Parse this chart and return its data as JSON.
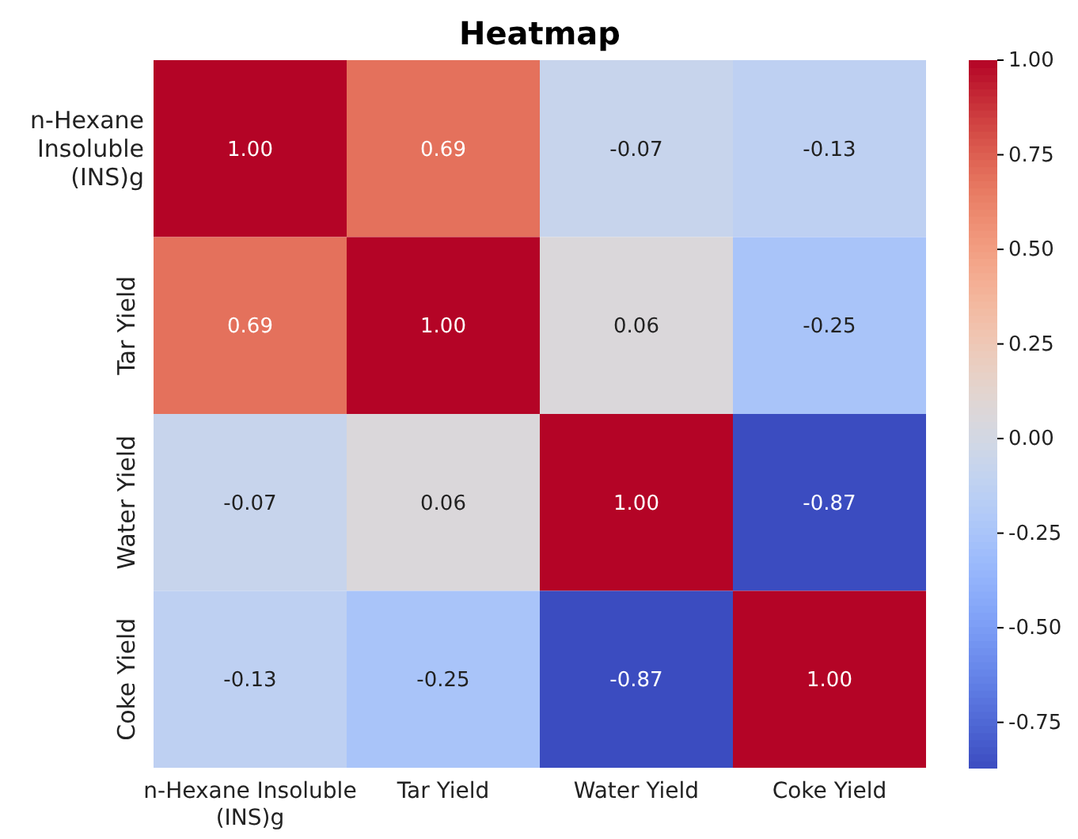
{
  "chart_data": {
    "type": "heatmap",
    "title": "Heatmap",
    "categories": [
      "n-Hexane Insoluble (INS)g",
      "Tar Yield",
      "Water Yield",
      "Coke Yield"
    ],
    "y_categories": [
      "n-Hexane Insoluble (INS)g",
      "Tar Yield",
      "Water Yield",
      "Coke Yield"
    ],
    "cells": [
      [
        1.0,
        0.69,
        -0.07,
        -0.13
      ],
      [
        0.69,
        1.0,
        0.06,
        -0.25
      ],
      [
        -0.07,
        0.06,
        1.0,
        -0.87
      ],
      [
        -0.13,
        -0.25,
        -0.87,
        1.0
      ]
    ],
    "cell_labels": [
      [
        "1.00",
        "0.69",
        "-0.07",
        "-0.13"
      ],
      [
        "0.69",
        "1.00",
        "0.06",
        "-0.25"
      ],
      [
        "-0.07",
        "0.06",
        "1.00",
        "-0.87"
      ],
      [
        "-0.13",
        "-0.25",
        "-0.87",
        "1.00"
      ]
    ],
    "clim": [
      -0.87,
      1.0
    ],
    "cticks": [
      {
        "value": -0.75,
        "label": "-0.75"
      },
      {
        "value": -0.5,
        "label": "-0.50"
      },
      {
        "value": -0.25,
        "label": "-0.25"
      },
      {
        "value": 0,
        "label": "0.00"
      },
      {
        "value": 0.25,
        "label": "0.25"
      },
      {
        "value": 0.5,
        "label": "0.50"
      },
      {
        "value": 0.75,
        "label": "0.75"
      },
      {
        "value": 1.0,
        "label": "1.00"
      }
    ],
    "data_labels": true
  }
}
